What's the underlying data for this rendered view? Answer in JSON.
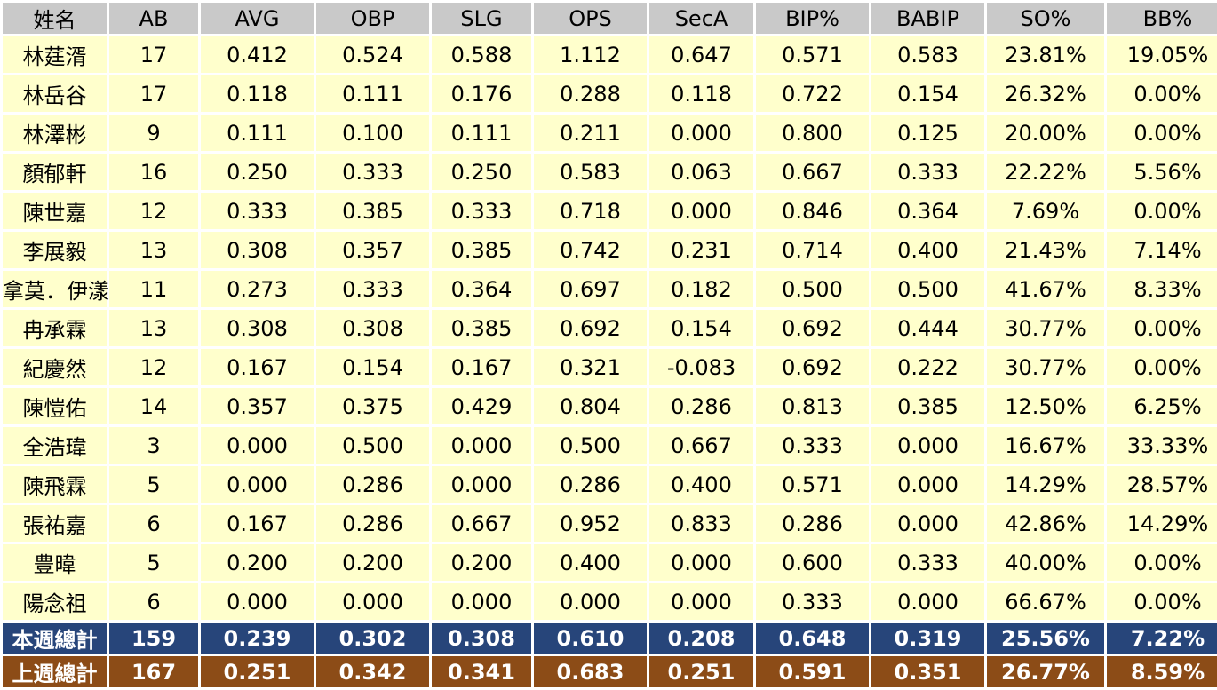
{
  "table": {
    "headers": [
      "姓名",
      "AB",
      "AVG",
      "OBP",
      "SLG",
      "OPS",
      "SecA",
      "BIP%",
      "BABIP",
      "SO%",
      "BB%"
    ],
    "rows": [
      [
        "林莛湑",
        "17",
        "0.412",
        "0.524",
        "0.588",
        "1.112",
        "0.647",
        "0.571",
        "0.583",
        "23.81%",
        "19.05%"
      ],
      [
        "林岳谷",
        "17",
        "0.118",
        "0.111",
        "0.176",
        "0.288",
        "0.118",
        "0.722",
        "0.154",
        "26.32%",
        "0.00%"
      ],
      [
        "林澤彬",
        "9",
        "0.111",
        "0.100",
        "0.111",
        "0.211",
        "0.000",
        "0.800",
        "0.125",
        "20.00%",
        "0.00%"
      ],
      [
        "顏郁軒",
        "16",
        "0.250",
        "0.333",
        "0.250",
        "0.583",
        "0.063",
        "0.667",
        "0.333",
        "22.22%",
        "5.56%"
      ],
      [
        "陳世嘉",
        "12",
        "0.333",
        "0.385",
        "0.333",
        "0.718",
        "0.000",
        "0.846",
        "0.364",
        "7.69%",
        "0.00%"
      ],
      [
        "李展毅",
        "13",
        "0.308",
        "0.357",
        "0.385",
        "0.742",
        "0.231",
        "0.714",
        "0.400",
        "21.43%",
        "7.14%"
      ],
      [
        "拿莫．伊漾",
        "11",
        "0.273",
        "0.333",
        "0.364",
        "0.697",
        "0.182",
        "0.500",
        "0.500",
        "41.67%",
        "8.33%"
      ],
      [
        "冉承霖",
        "13",
        "0.308",
        "0.308",
        "0.385",
        "0.692",
        "0.154",
        "0.692",
        "0.444",
        "30.77%",
        "0.00%"
      ],
      [
        "紀慶然",
        "12",
        "0.167",
        "0.154",
        "0.167",
        "0.321",
        "-0.083",
        "0.692",
        "0.222",
        "30.77%",
        "0.00%"
      ],
      [
        "陳愷佑",
        "14",
        "0.357",
        "0.375",
        "0.429",
        "0.804",
        "0.286",
        "0.813",
        "0.385",
        "12.50%",
        "6.25%"
      ],
      [
        "全浩瑋",
        "3",
        "0.000",
        "0.500",
        "0.000",
        "0.500",
        "0.667",
        "0.333",
        "0.000",
        "16.67%",
        "33.33%"
      ],
      [
        "陳飛霖",
        "5",
        "0.000",
        "0.286",
        "0.000",
        "0.286",
        "0.400",
        "0.571",
        "0.000",
        "14.29%",
        "28.57%"
      ],
      [
        "張祐嘉",
        "6",
        "0.167",
        "0.286",
        "0.667",
        "0.952",
        "0.833",
        "0.286",
        "0.000",
        "42.86%",
        "14.29%"
      ],
      [
        "豊暐",
        "5",
        "0.200",
        "0.200",
        "0.200",
        "0.400",
        "0.000",
        "0.600",
        "0.333",
        "40.00%",
        "0.00%"
      ],
      [
        "陽念祖",
        "6",
        "0.000",
        "0.000",
        "0.000",
        "0.000",
        "0.000",
        "0.333",
        "0.000",
        "66.67%",
        "0.00%"
      ]
    ],
    "this_week_total": [
      "本週總計",
      "159",
      "0.239",
      "0.302",
      "0.308",
      "0.610",
      "0.208",
      "0.648",
      "0.319",
      "25.56%",
      "7.22%"
    ],
    "last_week_total": [
      "上週總計",
      "167",
      "0.251",
      "0.342",
      "0.341",
      "0.683",
      "0.251",
      "0.591",
      "0.351",
      "26.77%",
      "8.59%"
    ]
  },
  "colors": {
    "header_bg": "#c9c9c9",
    "row_bg": "#ffffcc",
    "this_week_bg": "#27457a",
    "last_week_bg": "#8c4c17"
  }
}
